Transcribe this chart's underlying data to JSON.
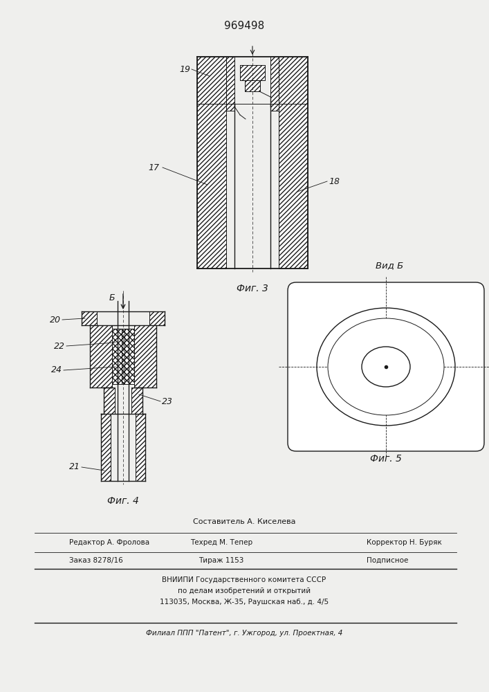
{
  "title": "969498",
  "bg_color": "#efefed",
  "line_color": "#1a1a1a",
  "fig3_caption": "Фиг. 3",
  "fig4_caption": "Фиг. 4",
  "fig5_caption": "Фиг. 5",
  "fig5_title": "Вид Б",
  "footer": {
    "sostavitel": "Составитель А. Киселева",
    "redaktor": "Редактор А. Фролова",
    "tehred": "Техред М. Тепер",
    "korrektor": "Корректор Н. Буряк",
    "zakaz": "Заказ 8278/16",
    "tirazh": "Тираж 1153",
    "podpisnoe": "Подписное",
    "vniipи": "ВНИИПИ Государственного комитета СССР",
    "po_delam": "по делам изобретений и открытий",
    "address": "113035, Москва, Ж-35, Раушская наб., д. 4/5",
    "filial": "Филиал ППП \"Патент\", г. Ужгород, ул. Проектная, 4"
  }
}
